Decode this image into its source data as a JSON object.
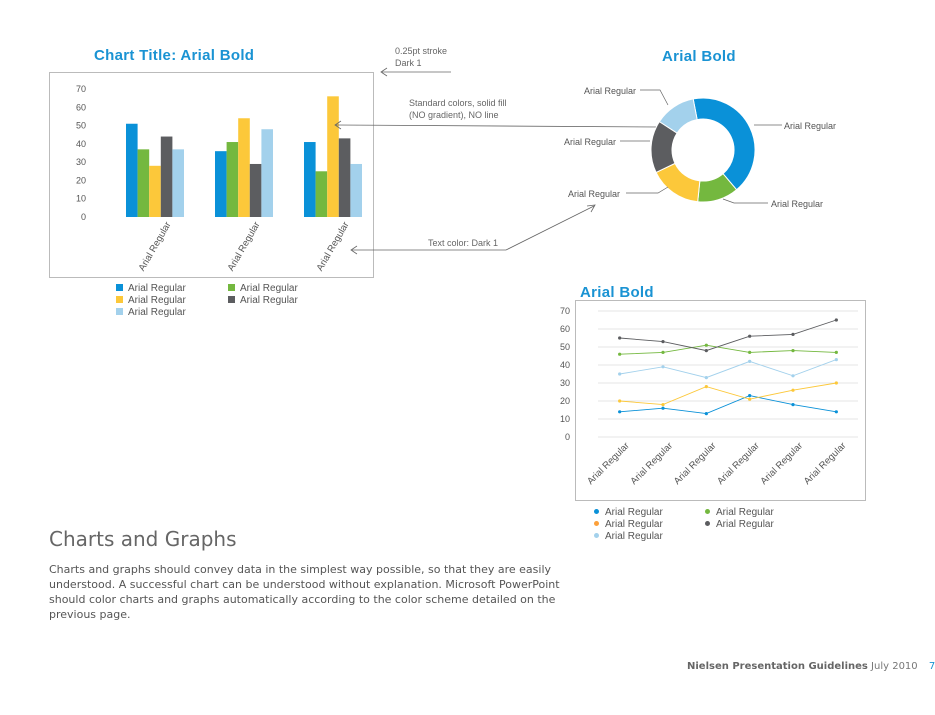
{
  "colors": {
    "accent": "#1a93d3",
    "series": [
      "#0a91d8",
      "#74b83f",
      "#fcc83a",
      "#5c5d60",
      "#a3d1ec"
    ],
    "text_dark": "#555555",
    "border": "#bbbbbb"
  },
  "bar_chart": {
    "title": "Chart Title: Arial Bold",
    "legend": [
      "Arial Regular",
      "Arial Regular",
      "Arial Regular",
      "Arial Regular",
      "Arial Regular"
    ]
  },
  "donut_chart": {
    "title": "Arial Bold",
    "labels": [
      "Arial Regular",
      "Arial Regular",
      "Arial Regular",
      "Arial Regular",
      "Arial Regular"
    ]
  },
  "line_chart": {
    "title": "Arial Bold",
    "legend": [
      "Arial Regular",
      "Arial Regular",
      "Arial Regular",
      "Arial Regular",
      "Arial Regular"
    ]
  },
  "annotations": {
    "stroke": [
      "0.25pt stroke",
      "Dark 1"
    ],
    "fill": [
      "Standard colors, solid fill",
      "(NO gradient), NO line"
    ],
    "text_color": "Text color: Dark 1"
  },
  "section": {
    "heading": "Charts and Graphs",
    "body": "Charts and graphs should convey data in the simplest way possible, so that they are easily understood. A successful chart can be understood without explanation. Microsoft PowerPoint should color charts and graphs automatically according to the color scheme detailed on the previous page."
  },
  "footer": {
    "brand": "Nielsen Presentation Guidelines",
    "date": "July 2010",
    "page": "7"
  },
  "chart_data": [
    {
      "type": "bar",
      "title": "Chart Title: Arial Bold",
      "categories": [
        "Arial Regular",
        "Arial Regular",
        "Arial Regular"
      ],
      "ylim": [
        0,
        70
      ],
      "yticks": [
        0,
        10,
        20,
        30,
        40,
        50,
        60,
        70
      ],
      "series": [
        {
          "name": "Arial Regular",
          "values": [
            51,
            36,
            41
          ]
        },
        {
          "name": "Arial Regular",
          "values": [
            37,
            41,
            25
          ]
        },
        {
          "name": "Arial Regular",
          "values": [
            28,
            54,
            66
          ]
        },
        {
          "name": "Arial Regular",
          "values": [
            44,
            29,
            43
          ]
        },
        {
          "name": "Arial Regular",
          "values": [
            37,
            48,
            29
          ]
        }
      ],
      "legend_position": "bottom"
    },
    {
      "type": "pie",
      "title": "Arial Bold",
      "donut": true,
      "slices": [
        {
          "label": "Arial Regular",
          "value": 36
        },
        {
          "label": "Arial Regular",
          "value": 11
        },
        {
          "label": "Arial Regular",
          "value": 14
        },
        {
          "label": "Arial Regular",
          "value": 14
        },
        {
          "label": "Arial Regular",
          "value": 11
        }
      ]
    },
    {
      "type": "line",
      "title": "Arial Bold",
      "categories": [
        "Arial Regular",
        "Arial Regular",
        "Arial Regular",
        "Arial Regular",
        "Arial Regular",
        "Arial Regular"
      ],
      "ylim": [
        0,
        70
      ],
      "yticks": [
        0,
        10,
        20,
        30,
        40,
        50,
        60,
        70
      ],
      "series": [
        {
          "name": "Arial Regular",
          "values": [
            14,
            16,
            13,
            23,
            18,
            14
          ]
        },
        {
          "name": "Arial Regular",
          "values": [
            46,
            47,
            51,
            47,
            48,
            47
          ]
        },
        {
          "name": "Arial Regular",
          "values": [
            20,
            18,
            28,
            21,
            26,
            30
          ]
        },
        {
          "name": "Arial Regular",
          "values": [
            55,
            53,
            48,
            56,
            57,
            65
          ]
        },
        {
          "name": "Arial Regular",
          "values": [
            35,
            39,
            33,
            42,
            34,
            43
          ]
        }
      ],
      "legend_position": "bottom"
    }
  ]
}
